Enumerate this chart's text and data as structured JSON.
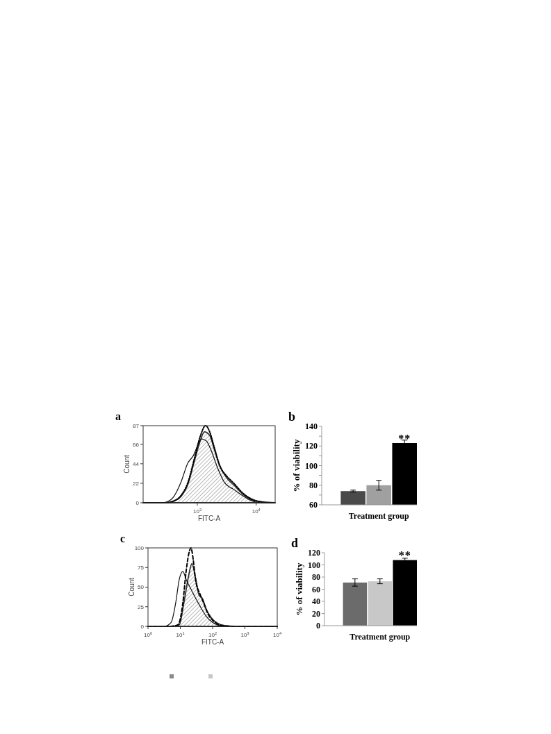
{
  "chart_data": [
    {
      "type": "line",
      "title": "a",
      "xlabel": "FITC-A",
      "ylabel": "Count",
      "log": "x",
      "xlim": [
        120,
        21000
      ],
      "xticks": [
        {
          "value": 1000,
          "label": "10$^{3}$"
        },
        {
          "value": 10000,
          "label": "10$^{4}$"
        }
      ],
      "ylim": [
        0,
        87
      ],
      "yticks": [
        0,
        22,
        44,
        66,
        87
      ],
      "series": [
        {
          "type": "area",
          "color": "#333333",
          "x": [
            120,
            300,
            398,
            525,
            692,
            891,
            1122,
            1318,
            1622,
            1950,
            2399,
            3162,
            4169,
            5888,
            8511,
            12303,
            21000
          ],
          "values": [
            0,
            0,
            2,
            7,
            21,
            47,
            70,
            80,
            76,
            60,
            42,
            28,
            20,
            10,
            3,
            1,
            0
          ]
        },
        {
          "type": "line",
          "color": "#111111",
          "line_style": "solid",
          "x": [
            120,
            240,
            302,
            398,
            525,
            692,
            851,
            1023,
            1175,
            1413,
            1698,
            2188,
            2884,
            4169,
            5888,
            8511,
            12303,
            21000
          ],
          "values": [
            0,
            0,
            1,
            7,
            23,
            45,
            53,
            65,
            72,
            70,
            60,
            40,
            23,
            15,
            8,
            2,
            0,
            0
          ]
        },
        {
          "type": "line",
          "color": "#000000",
          "line_style": "dotted",
          "x": [
            120,
            300,
            398,
            525,
            692,
            891,
            1122,
            1380,
            1622,
            1950,
            2399,
            3162,
            4169,
            5888,
            8511,
            12303,
            19055,
            21000
          ],
          "values": [
            0,
            0,
            2,
            8,
            23,
            50,
            75,
            87,
            80,
            62,
            42,
            30,
            22,
            11,
            4,
            1,
            0,
            0
          ]
        }
      ]
    },
    {
      "type": "bar",
      "title": "b",
      "xlabel": "Treatment group",
      "ylabel": "% of viability",
      "categories": [
        null,
        null,
        null
      ],
      "values": [
        74,
        80,
        123
      ],
      "errors": [
        1,
        5,
        3
      ],
      "colors": [
        "#4a4a4a",
        "#a0a0a0",
        "#000000"
      ],
      "ylim": [
        60,
        140
      ],
      "yticks": [
        60,
        {
          "value": 70,
          "label": null
        },
        80,
        {
          "value": 90,
          "label": null
        },
        100,
        {
          "value": 110,
          "label": null
        },
        120,
        {
          "value": 130,
          "label": null
        },
        140
      ],
      "annotations": [
        {
          "text": "**",
          "y": 128
        }
      ]
    },
    {
      "type": "line",
      "title": "c",
      "xlabel": "FITC-A",
      "ylabel": "Count",
      "log": "x",
      "xlim": [
        1,
        10000
      ],
      "xticks": [
        {
          "value": 1,
          "label": "10$^{0}$"
        },
        {
          "value": 10,
          "label": "10$^{1}$"
        },
        {
          "value": 100,
          "label": "10$^{2}$"
        },
        {
          "value": 1000,
          "label": "10$^{3}$"
        },
        {
          "value": 10000,
          "label": "10$^{4}$"
        }
      ],
      "ylim": [
        0,
        100
      ],
      "yticks": [
        0,
        25,
        50,
        75,
        100
      ],
      "series": [
        {
          "type": "area",
          "color": "#333333",
          "x": [
            1,
            5,
            9.3,
            12.9,
            18.2,
            22.9,
            29.5,
            38,
            49,
            63,
            87,
            141,
            234,
            500,
            10000
          ],
          "values": [
            0,
            0,
            2,
            30,
            65,
            80,
            62,
            40,
            35,
            22,
            12,
            4,
            1,
            0,
            0
          ]
        },
        {
          "type": "line",
          "color": "#111111",
          "line_style": "solid",
          "x": [
            1,
            2,
            3.2,
            5.2,
            7.2,
            9.3,
            12,
            15.1,
            22.9,
            38,
            63,
            100,
            158,
            300,
            10000
          ],
          "values": [
            0,
            0,
            0,
            5,
            30,
            60,
            70,
            60,
            45,
            28,
            13,
            5,
            1,
            0,
            0
          ]
        },
        {
          "type": "line",
          "color": "#000000",
          "line_style": "dashed",
          "x": [
            1,
            5,
            8.5,
            12,
            15.1,
            19.5,
            21.4,
            25.1,
            29.5,
            41.7,
            52.5,
            74,
            120,
            200,
            500,
            10000
          ],
          "values": [
            0,
            0,
            2,
            30,
            70,
            97,
            100,
            85,
            60,
            40,
            30,
            15,
            5,
            1,
            0,
            0
          ]
        }
      ]
    },
    {
      "type": "bar",
      "title": "d",
      "xlabel": "Treatment group",
      "ylabel": "% of viability",
      "categories": [
        null,
        null,
        null
      ],
      "values": [
        71,
        73,
        108
      ],
      "errors": [
        6,
        4,
        3
      ],
      "colors": [
        "#6b6b6b",
        "#c8c8c8",
        "#000000"
      ],
      "ylim": [
        0,
        120
      ],
      "yticks": [
        0,
        20,
        40,
        60,
        80,
        100,
        120
      ],
      "annotations": [
        {
          "text": "**",
          "y": 116
        }
      ]
    }
  ]
}
